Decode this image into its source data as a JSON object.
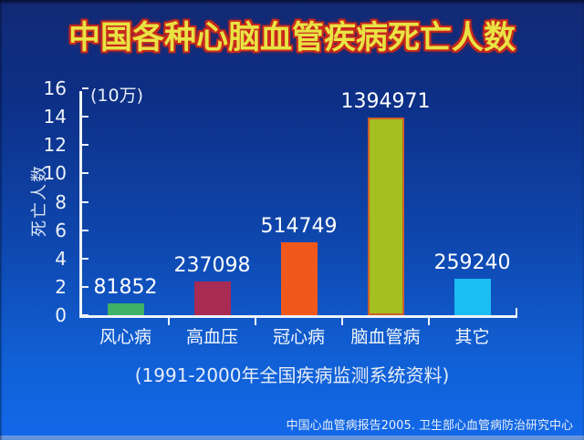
{
  "slide": {
    "title": "中国各种心脑血管疾病死亡人数",
    "caption": "(1991-2000年全国疾病监测系统资料)",
    "footer": "中国心血管病报告2005. 卫生部心血管病防治研究中心"
  },
  "colors": {
    "background_top": "#122a75",
    "background_bottom": "#1269ea",
    "title_fill": "#e9e343",
    "title_outline": "#c8281c",
    "axis": "#eef3fa",
    "label_text": "#ffffff"
  },
  "chart_data": {
    "type": "bar",
    "title": "中国各种心脑血管疾病死亡人数",
    "ylabel": "死亡人数",
    "unit_label": "(10万)",
    "xlabel": "",
    "categories": [
      "风心病",
      "高血压",
      "冠心病",
      "脑血管病",
      "其它"
    ],
    "values": [
      81852,
      237098,
      514749,
      1394971,
      259240
    ],
    "value_divisor": 100000,
    "ylim": [
      0,
      16
    ],
    "yticks": [
      0,
      2,
      4,
      6,
      8,
      10,
      12,
      14,
      16
    ],
    "grid": false,
    "legend": "none",
    "bar_colors": [
      "#3fb065",
      "#a82b54",
      "#f1591c",
      "#a4bf1f",
      "#1cbdf2"
    ],
    "bar_border_colors": [
      null,
      null,
      null,
      "#cf5f28",
      null
    ]
  }
}
